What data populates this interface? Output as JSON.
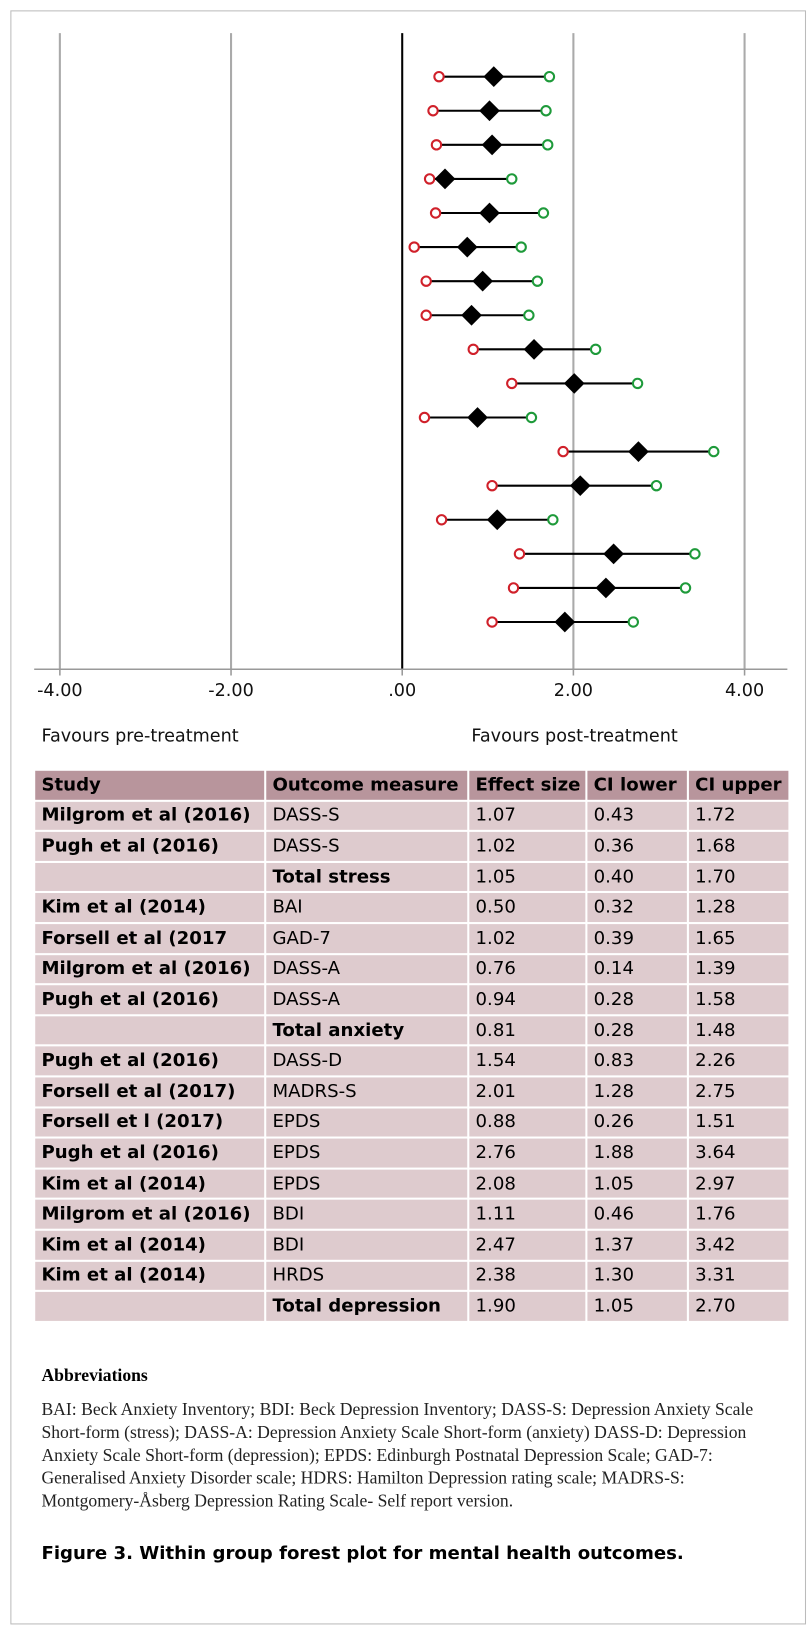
{
  "chart_data": {
    "type": "forest",
    "xlim": [
      -4.3,
      4.5
    ],
    "xticks": [
      {
        "value": -4,
        "label": "-4.00"
      },
      {
        "value": -2,
        "label": "-2.00"
      },
      {
        "value": 0,
        "label": ".00"
      },
      {
        "value": 2,
        "label": "2.00"
      },
      {
        "value": 4,
        "label": "4.00"
      }
    ],
    "grid": true,
    "left_label": "Favours pre-treatment",
    "right_label": "Favours post-treatment",
    "values": [
      1.07,
      1.02,
      1.05,
      0.5,
      1.02,
      0.76,
      0.94,
      0.81,
      1.54,
      2.01,
      0.88,
      2.76,
      2.08,
      1.11,
      2.47,
      2.38,
      1.9
    ],
    "lower": [
      0.43,
      0.36,
      0.4,
      0.32,
      0.39,
      0.14,
      0.28,
      0.28,
      0.83,
      1.28,
      0.26,
      1.88,
      1.05,
      0.46,
      1.37,
      1.3,
      1.05
    ],
    "upper": [
      1.72,
      1.68,
      1.7,
      1.28,
      1.65,
      1.39,
      1.58,
      1.48,
      2.26,
      2.75,
      1.51,
      3.64,
      2.97,
      1.76,
      3.42,
      3.31,
      2.7
    ],
    "color": "#000000",
    "lower_color": "#d0202a",
    "upper_color": "#1e9a3a"
  },
  "table": {
    "header": [
      "Study",
      "Outcome measure",
      "Effect size",
      "CI lower",
      "CI upper"
    ],
    "rows": [
      [
        "Milgrom et al (2016)",
        "DASS-S",
        "1.07",
        "0.43",
        "1.72"
      ],
      [
        "Pugh et al (2016)",
        "DASS-S",
        "1.02",
        "0.36",
        "1.68"
      ],
      [
        null,
        "Total stress",
        "1.05",
        "0.40",
        "1.70"
      ],
      [
        "Kim et al (2014)",
        "BAI",
        "0.50",
        "0.32",
        "1.28"
      ],
      [
        "Forsell et al (2017",
        "GAD-7",
        "1.02",
        "0.39",
        "1.65"
      ],
      [
        "Milgrom et al (2016)",
        "DASS-A",
        "0.76",
        "0.14",
        "1.39"
      ],
      [
        "Pugh et al (2016)",
        "DASS-A",
        "0.94",
        "0.28",
        "1.58"
      ],
      [
        null,
        "Total anxiety",
        "0.81",
        "0.28",
        "1.48"
      ],
      [
        "Pugh et al (2016)",
        "DASS-D",
        "1.54",
        "0.83",
        "2.26"
      ],
      [
        "Forsell et al (2017)",
        "MADRS-S",
        "2.01",
        "1.28",
        "2.75"
      ],
      [
        "Forsell et l (2017)",
        "EPDS",
        "0.88",
        "0.26",
        "1.51"
      ],
      [
        "Pugh et al (2016)",
        "EPDS",
        "2.76",
        "1.88",
        "3.64"
      ],
      [
        "Kim et al (2014)",
        "EPDS",
        "2.08",
        "1.05",
        "2.97"
      ],
      [
        "Milgrom et al (2016)",
        "BDI",
        "1.11",
        "0.46",
        "1.76"
      ],
      [
        "Kim et al (2014)",
        "BDI",
        "2.47",
        "1.37",
        "3.42"
      ],
      [
        "Kim et al (2014)",
        "HRDS",
        "2.38",
        "1.30",
        "3.31"
      ],
      [
        null,
        "Total depression",
        "1.90",
        "1.05",
        "2.70"
      ]
    ]
  },
  "notes": {
    "heading": "Abbreviations",
    "text": "BAI: Beck Anxiety Inventory; BDI: Beck Depression Inventory; DASS-S: Depression Anxiety Scale Short-form (stress); DASS-A: Depression Anxiety Scale Short-form (anxiety)  DASS-D: Depression Anxiety Scale Short-form (depression); EPDS: Edinburgh Postnatal Depression Scale; GAD-7: Generalised Anxiety Disorder scale; HDRS: Hamilton Depression rating scale; MADRS-S: Montgomery-Åsberg Depression Rating Scale- Self report version."
  },
  "caption": "Figure 3. Within group forest plot for mental health outcomes."
}
